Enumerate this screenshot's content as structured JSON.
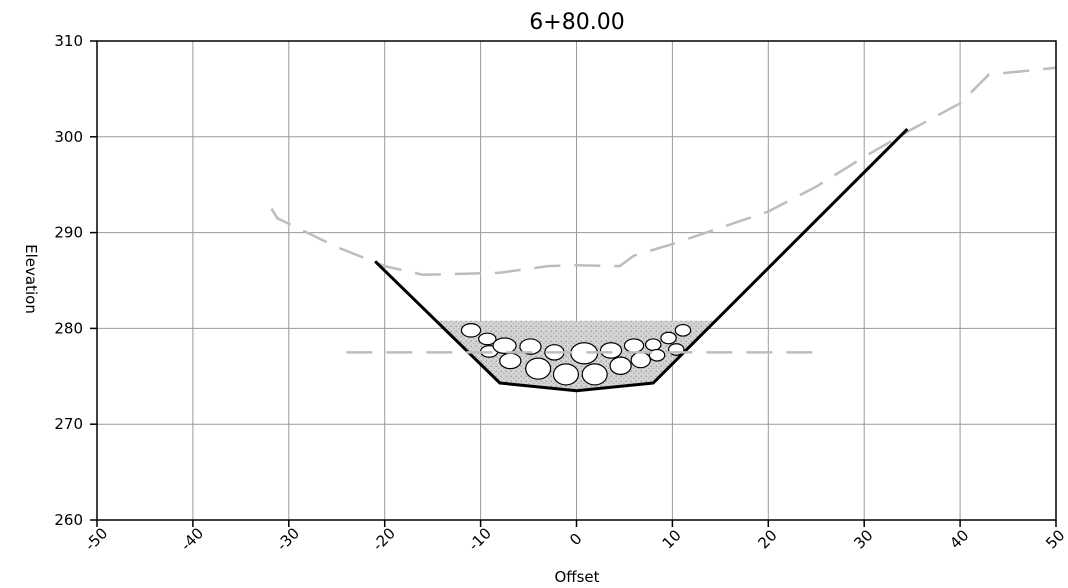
{
  "chart_data": {
    "type": "line",
    "title": "6+80.00",
    "xlabel": "Offset",
    "ylabel": "Elevation",
    "xlim": [
      -50,
      50
    ],
    "ylim": [
      260,
      310
    ],
    "x_ticks": [
      -50,
      -40,
      -30,
      -20,
      -10,
      0,
      10,
      20,
      30,
      40,
      50
    ],
    "y_ticks": [
      260,
      270,
      280,
      290,
      300,
      310
    ],
    "grid": true,
    "series": [
      {
        "style": "dashed",
        "color": "#bdbdbd",
        "points": [
          [
            -31.8,
            292.5
          ],
          [
            -31.2,
            291.5
          ],
          [
            -25,
            288.5
          ],
          [
            -20,
            286.5
          ],
          [
            -16,
            285.6
          ],
          [
            -8,
            285.8
          ],
          [
            -3,
            286.5
          ],
          [
            0,
            286.6
          ],
          [
            4.5,
            286.5
          ],
          [
            6,
            287.6
          ],
          [
            10,
            288.8
          ],
          [
            15,
            290.5
          ],
          [
            20,
            292.2
          ],
          [
            25,
            294.8
          ],
          [
            30,
            297.9
          ],
          [
            35,
            300.8
          ],
          [
            40,
            303.5
          ],
          [
            43,
            306.5
          ],
          [
            46,
            306.8
          ],
          [
            50,
            307.2
          ]
        ]
      },
      {
        "style": "solid",
        "color": "#000000",
        "points": [
          [
            -21,
            287
          ],
          [
            -8,
            274.3
          ],
          [
            0,
            273.5
          ],
          [
            8,
            274.3
          ],
          [
            34.5,
            300.8
          ]
        ]
      },
      {
        "style": "dashed",
        "color": "#bdbdbd",
        "points": [
          [
            -24,
            277.5
          ],
          [
            25,
            277.5
          ]
        ]
      }
    ],
    "riprap": {
      "fill_color": "#cfcfcf",
      "top_elevation": 280.8,
      "stones": [
        [
          -11,
          279.8,
          1.0,
          0.7
        ],
        [
          -9.3,
          278.9,
          0.9,
          0.6
        ],
        [
          -9.1,
          277.6,
          0.9,
          0.6
        ],
        [
          -7.5,
          278.2,
          1.2,
          0.8
        ],
        [
          -4.8,
          278.1,
          1.1,
          0.8
        ],
        [
          -2.3,
          277.5,
          1.0,
          0.8
        ],
        [
          -6.9,
          276.6,
          1.1,
          0.8
        ],
        [
          -4.0,
          275.8,
          1.3,
          1.1
        ],
        [
          -1.1,
          275.2,
          1.3,
          1.1
        ],
        [
          0.8,
          277.4,
          1.4,
          1.1
        ],
        [
          3.6,
          277.7,
          1.1,
          0.8
        ],
        [
          6.0,
          278.2,
          1.0,
          0.7
        ],
        [
          8.0,
          278.3,
          0.8,
          0.6
        ],
        [
          9.6,
          279.0,
          0.8,
          0.6
        ],
        [
          11.1,
          279.8,
          0.8,
          0.6
        ],
        [
          1.9,
          275.2,
          1.3,
          1.1
        ],
        [
          4.6,
          276.1,
          1.1,
          0.9
        ],
        [
          6.7,
          276.7,
          1.0,
          0.8
        ],
        [
          8.4,
          277.2,
          0.8,
          0.6
        ],
        [
          10.4,
          277.8,
          0.8,
          0.6
        ]
      ]
    }
  }
}
